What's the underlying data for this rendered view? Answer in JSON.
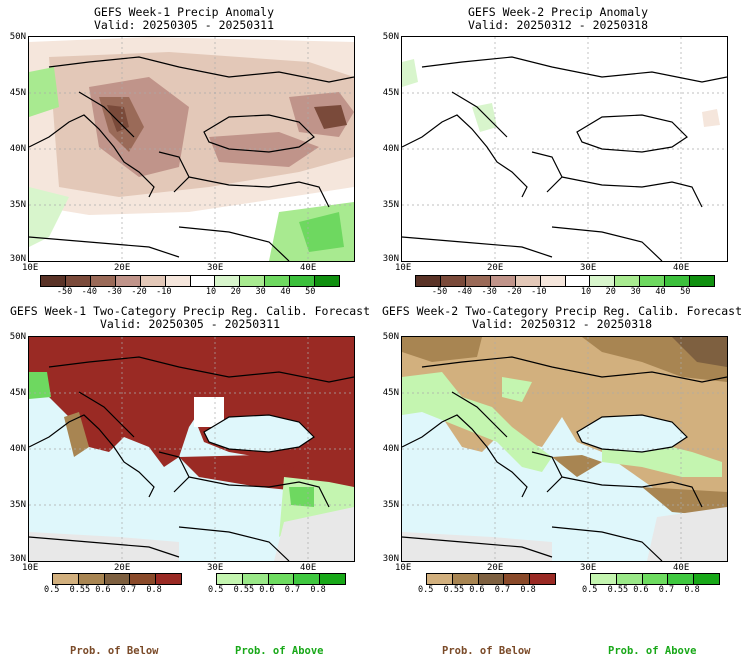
{
  "panels": [
    {
      "line1": "GEFS Week-1 Precip Anomaly",
      "line2": "Valid: 20250305 - 20250311"
    },
    {
      "line1": "GEFS Week-2 Precip Anomaly",
      "line2": "Valid: 20250312 - 20250318"
    },
    {
      "line1": "GEFS Week-1 Two-Category Precip Reg. Calib. Forecast",
      "line2": "Valid: 20250305 - 20250311"
    },
    {
      "line1": "GEFS Week-2 Two-Category Precip Reg. Calib. Forecast",
      "line2": "Valid: 20250312 - 20250318"
    }
  ],
  "axes": {
    "lat_labels": [
      "50N",
      "45N",
      "40N",
      "35N",
      "30N"
    ],
    "lon_labels": [
      "10E",
      "20E",
      "30E",
      "40E"
    ]
  },
  "anomaly_colorbar": {
    "labels": [
      "-50",
      "-40",
      "-30",
      "-20",
      "-10",
      "10",
      "20",
      "30",
      "40",
      "50"
    ],
    "colors": [
      "#5a3327",
      "#7a4a3a",
      "#9a6a58",
      "#c0948a",
      "#e3c8b8",
      "#f5e6dc",
      "#ffffff",
      "#d8f5cc",
      "#a8ea90",
      "#6ed860",
      "#3cc03c",
      "#109010"
    ]
  },
  "prob_below_colorbar": {
    "labels": [
      "0.5",
      "0.55",
      "0.6",
      "0.7",
      "0.8"
    ],
    "colors": [
      "#d2b07e",
      "#a88552",
      "#7e6040",
      "#8a4a2a",
      "#9a2a24"
    ]
  },
  "prob_above_colorbar": {
    "labels": [
      "0.5",
      "0.55",
      "0.6",
      "0.7",
      "0.8"
    ],
    "colors": [
      "#c4f5b0",
      "#9ae888",
      "#6edc60",
      "#40c840",
      "#18a818"
    ]
  },
  "footer": {
    "below_label": "Prob. of Below",
    "above_label": "Prob. of Above",
    "below_color": "#7a4a28",
    "above_color": "#18a818"
  },
  "map_colors": {
    "sea": "#dff7fb",
    "land_white": "#ffffff",
    "no_data": "#e8e8e8",
    "below_strong": "#9a2a24",
    "below_light": "#d2b07e",
    "below_mid": "#a88552",
    "above_light": "#c4f5b0"
  }
}
